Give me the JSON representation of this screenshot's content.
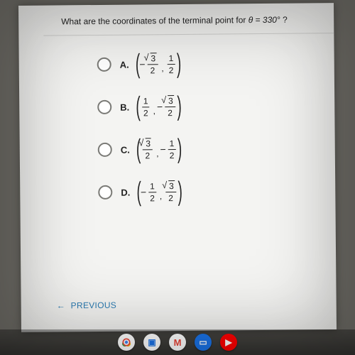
{
  "question": {
    "prefix": "What are the coordinates of the terminal point for ",
    "theta": "θ = 330°",
    "suffix": "?"
  },
  "options": {
    "A": {
      "letter": "A.",
      "x": {
        "sign": "−",
        "num_type": "sqrt",
        "num_val": "3",
        "den": "2"
      },
      "y": {
        "sign": "",
        "num_type": "plain",
        "num_val": "1",
        "den": "2"
      }
    },
    "B": {
      "letter": "B.",
      "x": {
        "sign": "",
        "num_type": "plain",
        "num_val": "1",
        "den": "2"
      },
      "y": {
        "sign": "−",
        "num_type": "sqrt",
        "num_val": "3",
        "den": "2"
      }
    },
    "C": {
      "letter": "C.",
      "x": {
        "sign": "",
        "num_type": "sqrt",
        "num_val": "3",
        "den": "2"
      },
      "y": {
        "sign": "−",
        "num_type": "plain",
        "num_val": "1",
        "den": "2"
      }
    },
    "D": {
      "letter": "D.",
      "x": {
        "sign": "−",
        "num_type": "plain",
        "num_val": "1",
        "den": "2"
      },
      "y": {
        "sign": "",
        "num_type": "sqrt",
        "num_val": "3",
        "den": "2"
      }
    }
  },
  "nav": {
    "previous": "PREVIOUS"
  },
  "shelf": {
    "meet_glyph": "▣",
    "gmail_glyph": "M",
    "docs_glyph": "▭",
    "yt_glyph": "▶"
  },
  "colors": {
    "page_bg": "#f4f4f2",
    "text": "#222222",
    "divider": "#d0d0ce",
    "link": "#2a7ab0",
    "frame": "#6a6a64"
  }
}
